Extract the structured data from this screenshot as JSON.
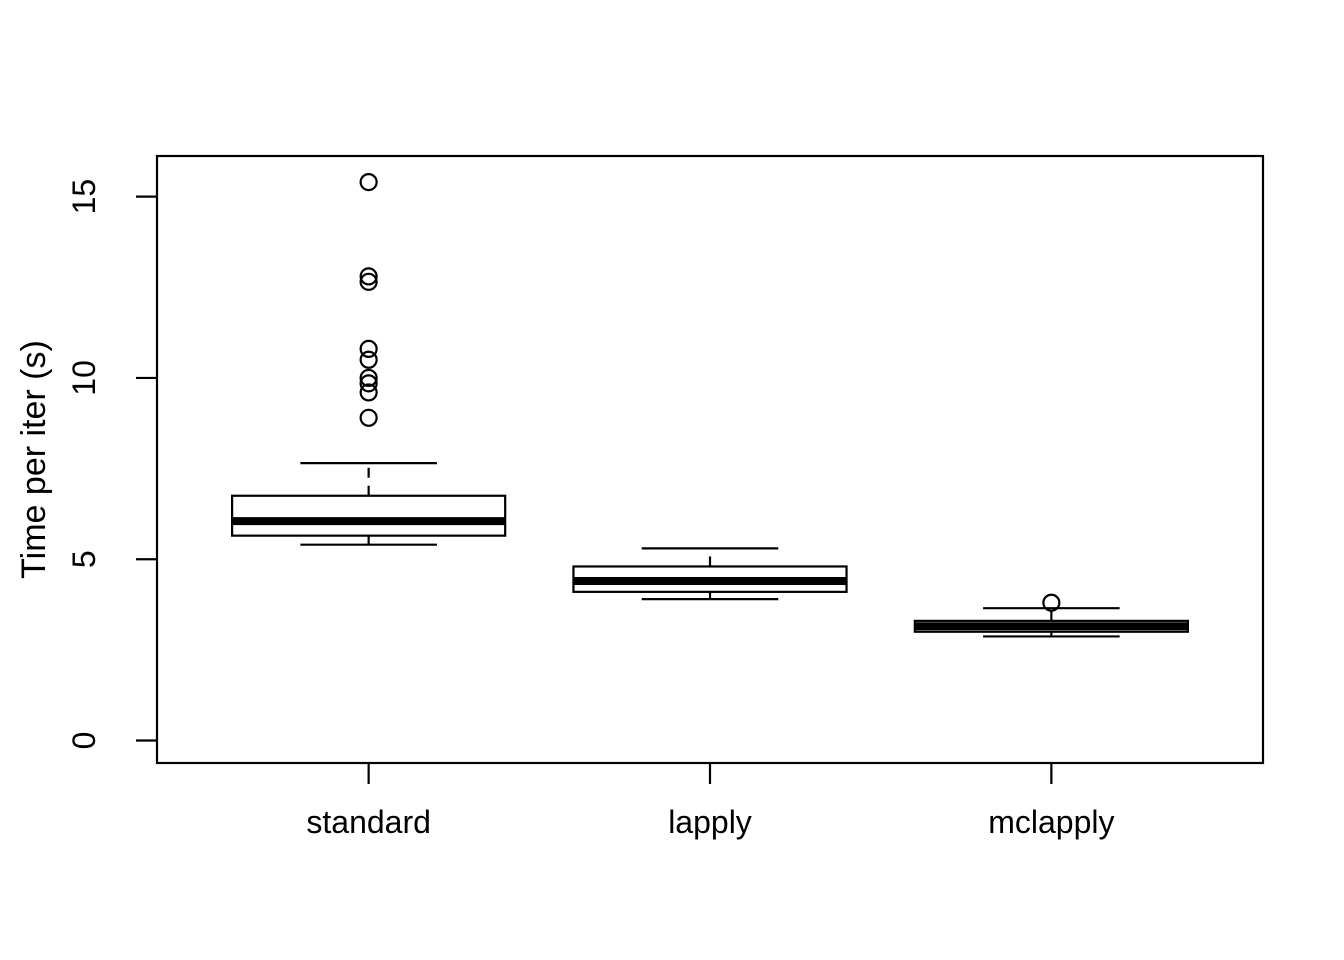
{
  "chart_data": {
    "type": "boxplot",
    "title": "",
    "xlabel": "",
    "ylabel": "Time per iter (s)",
    "categories": [
      "standard",
      "lapply",
      "mclapply"
    ],
    "yticks": [
      "15",
      "10",
      "5",
      "0"
    ],
    "ytick_values": [
      15,
      10,
      5,
      0
    ],
    "ylim": [
      -0.62,
      16.12
    ],
    "xlim": [
      0.38,
      3.62
    ],
    "grid": false,
    "legend": null,
    "series": [
      {
        "name": "standard",
        "position": 1,
        "whisker_low": 5.4,
        "q1": 5.65,
        "median": 6.05,
        "q3": 6.75,
        "whisker_high": 7.65,
        "outliers": [
          8.9,
          9.6,
          9.85,
          10.0,
          10.5,
          10.8,
          12.65,
          12.8,
          15.4
        ]
      },
      {
        "name": "lapply",
        "position": 2,
        "whisker_low": 3.9,
        "q1": 4.1,
        "median": 4.4,
        "q3": 4.8,
        "whisker_high": 5.3,
        "outliers": []
      },
      {
        "name": "mclapply",
        "position": 3,
        "whisker_low": 2.87,
        "q1": 3.0,
        "median": 3.15,
        "q3": 3.3,
        "whisker_high": 3.65,
        "outliers": [
          3.8
        ]
      }
    ],
    "colors": {
      "stroke": "#000000",
      "box_fill": "#ffffff",
      "background": "#ffffff"
    }
  }
}
